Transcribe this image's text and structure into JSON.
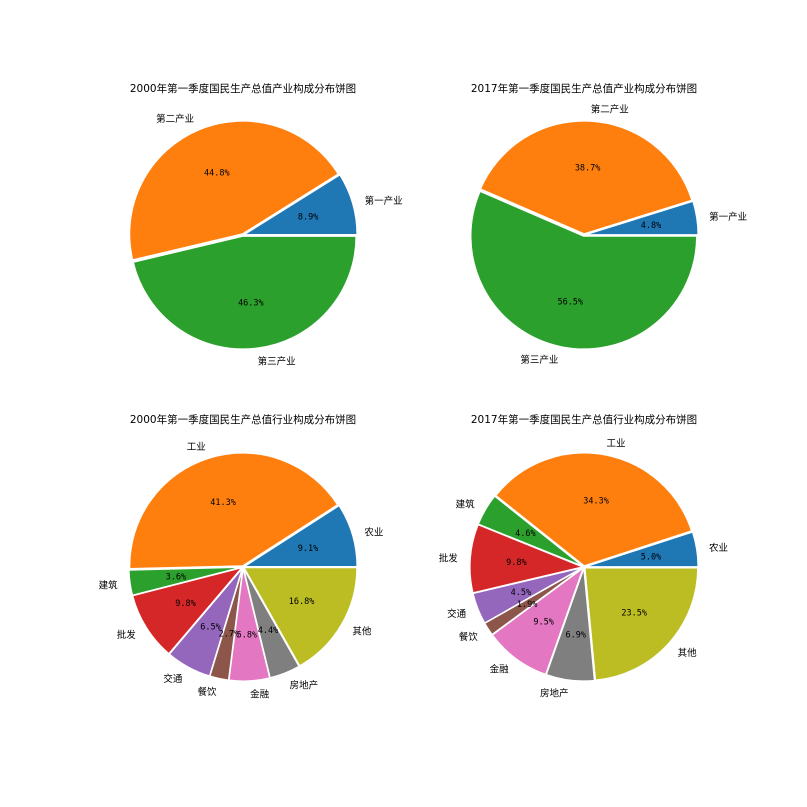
{
  "chart_data": [
    {
      "type": "pie",
      "title": "2000年第一季度国民生产总值产业构成分布饼图",
      "labels": [
        "第一产业",
        "第二产业",
        "第三产业"
      ],
      "values": [
        8.9,
        44.8,
        46.3
      ],
      "value_labels": [
        "8.9%",
        "44.8%",
        "46.3%"
      ],
      "colors": [
        "#1f77b4",
        "#ff7f0e",
        "#2ca02c"
      ],
      "start_angle": 0,
      "direction": "counterclockwise",
      "explode": [
        0.01,
        0.01,
        0.01
      ]
    },
    {
      "type": "pie",
      "title": "2017年第一季度国民生产总值产业构成分布饼图",
      "labels": [
        "第一产业",
        "第二产业",
        "第三产业"
      ],
      "values": [
        4.8,
        38.7,
        56.5
      ],
      "value_labels": [
        "4.8%",
        "38.7%",
        "56.5%"
      ],
      "colors": [
        "#1f77b4",
        "#ff7f0e",
        "#2ca02c"
      ],
      "start_angle": 0,
      "direction": "counterclockwise",
      "explode": [
        0.01,
        0.01,
        0.01
      ]
    },
    {
      "type": "pie",
      "title": "2000年第一季度国民生产总值行业构成分布饼图",
      "labels": [
        "农业",
        "工业",
        "建筑",
        "批发",
        "交通",
        "餐饮",
        "金融",
        "房地产",
        "其他"
      ],
      "values": [
        9.1,
        41.3,
        3.6,
        9.8,
        6.5,
        2.7,
        5.8,
        4.4,
        16.8
      ],
      "value_labels": [
        "9.1%",
        "41.3%",
        "3.6%",
        "9.8%",
        "6.5%",
        "2.7%",
        "5.8%",
        "4.4%",
        "16.8%"
      ],
      "colors": [
        "#1f77b4",
        "#ff7f0e",
        "#2ca02c",
        "#d62728",
        "#9467bd",
        "#8c564b",
        "#e377c2",
        "#7f7f7f",
        "#bcbd22"
      ],
      "start_angle": 0,
      "direction": "counterclockwise",
      "explode": [
        0.01,
        0.01,
        0.01,
        0.01,
        0.01,
        0.01,
        0.01,
        0.01,
        0.01
      ]
    },
    {
      "type": "pie",
      "title": "2017年第一季度国民生产总值行业构成分布饼图",
      "labels": [
        "农业",
        "工业",
        "建筑",
        "批发",
        "交通",
        "餐饮",
        "金融",
        "房地产",
        "其他"
      ],
      "values": [
        5.0,
        34.3,
        4.6,
        9.8,
        4.5,
        1.9,
        9.5,
        6.9,
        23.5
      ],
      "value_labels": [
        "5.0%",
        "34.3%",
        "4.6%",
        "9.8%",
        "4.5%",
        "1.9%",
        "9.5%",
        "6.9%",
        "23.5%"
      ],
      "colors": [
        "#1f77b4",
        "#ff7f0e",
        "#2ca02c",
        "#d62728",
        "#9467bd",
        "#8c564b",
        "#e377c2",
        "#7f7f7f",
        "#bcbd22"
      ],
      "start_angle": 0,
      "direction": "counterclockwise",
      "explode": [
        0.01,
        0.01,
        0.01,
        0.01,
        0.01,
        0.01,
        0.01,
        0.01,
        0.01
      ]
    }
  ]
}
